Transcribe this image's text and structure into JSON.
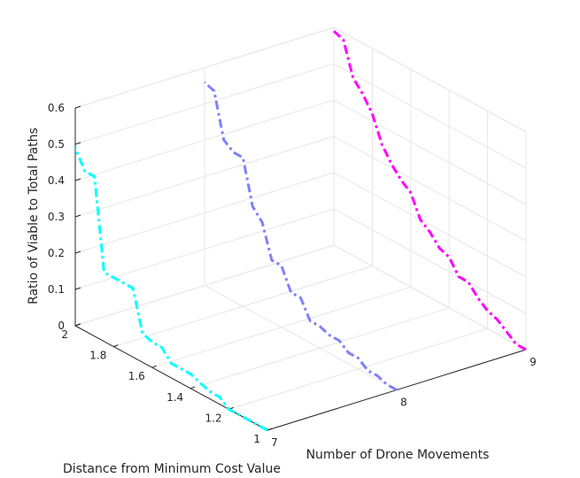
{
  "chart_data": {
    "type": "line",
    "projection": "3d",
    "xlabel": "Number of Drone Movements",
    "ylabel": "Distance from Minimum Cost Value",
    "zlabel": "Ratio of Viable to Total Paths",
    "xlim": [
      7,
      9
    ],
    "ylim": [
      1,
      2
    ],
    "zlim": [
      0,
      0.6
    ],
    "x_ticks": [
      "7",
      "8",
      "9"
    ],
    "y_ticks": [
      "1",
      "1.2",
      "1.4",
      "1.6",
      "1.8",
      "2"
    ],
    "z_ticks": [
      "0",
      "0.1",
      "0.2",
      "0.3",
      "0.4",
      "0.5",
      "0.6"
    ],
    "grid": true,
    "line_style": "dash-dot",
    "series": [
      {
        "x": 7,
        "color": "#00ffff",
        "points": [
          [
            1.0,
            0.0
          ],
          [
            1.05,
            0.0
          ],
          [
            1.1,
            0.0
          ],
          [
            1.15,
            0.0
          ],
          [
            1.2,
            0.0
          ],
          [
            1.25,
            0.02
          ],
          [
            1.3,
            0.02
          ],
          [
            1.35,
            0.03
          ],
          [
            1.4,
            0.04
          ],
          [
            1.45,
            0.04
          ],
          [
            1.5,
            0.04
          ],
          [
            1.55,
            0.07
          ],
          [
            1.6,
            0.07
          ],
          [
            1.65,
            0.08
          ],
          [
            1.7,
            0.19
          ],
          [
            1.75,
            0.19
          ],
          [
            1.8,
            0.19
          ],
          [
            1.85,
            0.19
          ],
          [
            1.9,
            0.44
          ],
          [
            1.95,
            0.44
          ],
          [
            2.0,
            0.49
          ]
        ]
      },
      {
        "x": 8,
        "color": "#8080ff",
        "points": [
          [
            1.0,
            0.0
          ],
          [
            1.05,
            0.0
          ],
          [
            1.1,
            0.01
          ],
          [
            1.15,
            0.01
          ],
          [
            1.2,
            0.03
          ],
          [
            1.25,
            0.03
          ],
          [
            1.3,
            0.05
          ],
          [
            1.35,
            0.05
          ],
          [
            1.4,
            0.06
          ],
          [
            1.45,
            0.06
          ],
          [
            1.5,
            0.11
          ],
          [
            1.55,
            0.11
          ],
          [
            1.6,
            0.17
          ],
          [
            1.65,
            0.17
          ],
          [
            1.7,
            0.26
          ],
          [
            1.75,
            0.29
          ],
          [
            1.8,
            0.41
          ],
          [
            1.85,
            0.41
          ],
          [
            1.9,
            0.43
          ],
          [
            1.95,
            0.55
          ],
          [
            2.0,
            0.56
          ]
        ]
      },
      {
        "x": 9,
        "color": "#ff00ff",
        "points": [
          [
            1.0,
            0.0
          ],
          [
            1.05,
            0.0
          ],
          [
            1.1,
            0.02
          ],
          [
            1.15,
            0.04
          ],
          [
            1.2,
            0.05
          ],
          [
            1.25,
            0.07
          ],
          [
            1.3,
            0.1
          ],
          [
            1.35,
            0.1
          ],
          [
            1.4,
            0.14
          ],
          [
            1.45,
            0.15
          ],
          [
            1.5,
            0.18
          ],
          [
            1.55,
            0.2
          ],
          [
            1.6,
            0.26
          ],
          [
            1.65,
            0.28
          ],
          [
            1.7,
            0.31
          ],
          [
            1.75,
            0.35
          ],
          [
            1.8,
            0.42
          ],
          [
            1.85,
            0.46
          ],
          [
            1.9,
            0.49
          ],
          [
            1.95,
            0.58
          ],
          [
            2.0,
            0.59
          ]
        ]
      }
    ]
  }
}
